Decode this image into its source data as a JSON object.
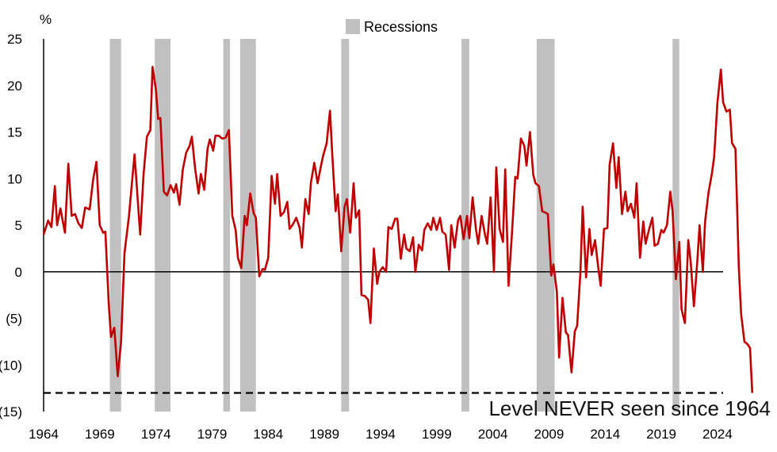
{
  "chart_data": {
    "type": "line",
    "title": "",
    "xlabel": "",
    "ylabel": "%",
    "xlim": [
      1964,
      2024.5
    ],
    "ylim": [
      -15,
      25
    ],
    "x_ticks": [
      1964,
      1969,
      1974,
      1979,
      1984,
      1989,
      1994,
      1999,
      2004,
      2009,
      2014,
      2019,
      2024
    ],
    "y_ticks": [
      {
        "value": 25,
        "label": "25"
      },
      {
        "value": 20,
        "label": "20"
      },
      {
        "value": 15,
        "label": "15"
      },
      {
        "value": 10,
        "label": "10"
      },
      {
        "value": 5,
        "label": "5"
      },
      {
        "value": 0,
        "label": "0"
      },
      {
        "value": -5,
        "label": "(5)"
      },
      {
        "value": -10,
        "label": "(10)"
      },
      {
        "value": -15,
        "label": "(15)"
      }
    ],
    "legend": {
      "placement": "top-center",
      "entries": [
        {
          "label": "Recessions",
          "color": "#c0c0c0"
        }
      ]
    },
    "recessions": [
      [
        1969.9,
        1970.9
      ],
      [
        1973.9,
        1975.3
      ],
      [
        1980.0,
        1980.6
      ],
      [
        1981.5,
        1982.9
      ],
      [
        1990.5,
        1991.2
      ],
      [
        2001.2,
        2001.9
      ],
      [
        2007.9,
        2009.5
      ],
      [
        2020.0,
        2020.6
      ]
    ],
    "series": [
      {
        "color": "#c00000",
        "points": [
          [
            1964.0,
            4
          ],
          [
            1964.4,
            5.5
          ],
          [
            1964.7,
            4.8
          ],
          [
            1965.0,
            9.2
          ],
          [
            1965.2,
            5
          ],
          [
            1965.5,
            6.8
          ],
          [
            1965.9,
            4.2
          ],
          [
            1966.2,
            11.6
          ],
          [
            1966.5,
            6
          ],
          [
            1966.8,
            6.2
          ],
          [
            1967.1,
            5.2
          ],
          [
            1967.4,
            4.7
          ],
          [
            1967.7,
            6.9
          ],
          [
            1968.1,
            6.7
          ],
          [
            1968.4,
            9.8
          ],
          [
            1968.7,
            11.8
          ],
          [
            1969.0,
            5
          ],
          [
            1969.3,
            4.2
          ],
          [
            1969.5,
            4.3
          ],
          [
            1969.8,
            -3.5
          ],
          [
            1970.0,
            -7
          ],
          [
            1970.3,
            -6
          ],
          [
            1970.6,
            -11.2
          ],
          [
            1970.9,
            -7.5
          ],
          [
            1971.2,
            2
          ],
          [
            1971.6,
            6
          ],
          [
            1971.9,
            10
          ],
          [
            1972.1,
            12.6
          ],
          [
            1972.6,
            4
          ],
          [
            1972.9,
            10.5
          ],
          [
            1973.2,
            14.5
          ],
          [
            1973.5,
            15.2
          ],
          [
            1973.7,
            22
          ],
          [
            1974.0,
            19.5
          ],
          [
            1974.2,
            16.4
          ],
          [
            1974.4,
            16.5
          ],
          [
            1974.7,
            8.6
          ],
          [
            1975.0,
            8.2
          ],
          [
            1975.3,
            9.3
          ],
          [
            1975.6,
            8.5
          ],
          [
            1975.8,
            9.4
          ],
          [
            1976.1,
            7.2
          ],
          [
            1976.4,
            11
          ],
          [
            1976.7,
            12.8
          ],
          [
            1977.0,
            13.5
          ],
          [
            1977.2,
            14.5
          ],
          [
            1977.5,
            11
          ],
          [
            1977.8,
            8.4
          ],
          [
            1978.0,
            10.5
          ],
          [
            1978.3,
            8.8
          ],
          [
            1978.6,
            13.2
          ],
          [
            1978.8,
            14.2
          ],
          [
            1979.1,
            13
          ],
          [
            1979.3,
            14.6
          ],
          [
            1979.6,
            14.6
          ],
          [
            1979.9,
            14.3
          ],
          [
            1980.2,
            14.4
          ],
          [
            1980.5,
            15.2
          ],
          [
            1980.8,
            6
          ],
          [
            1981.1,
            4.5
          ],
          [
            1981.3,
            1.5
          ],
          [
            1981.6,
            0.4
          ],
          [
            1981.9,
            6
          ],
          [
            1982.1,
            5
          ],
          [
            1982.4,
            8.4
          ],
          [
            1982.7,
            6.3
          ],
          [
            1982.9,
            5.8
          ],
          [
            1983.2,
            -0.5
          ],
          [
            1983.5,
            0.3
          ],
          [
            1983.7,
            0.2
          ],
          [
            1984.0,
            1.5
          ],
          [
            1984.3,
            10.3
          ],
          [
            1984.6,
            7.3
          ],
          [
            1984.8,
            10.5
          ],
          [
            1985.1,
            6
          ],
          [
            1985.4,
            6.4
          ],
          [
            1985.7,
            7.5
          ],
          [
            1985.9,
            4.6
          ],
          [
            1986.2,
            5.1
          ],
          [
            1986.5,
            5.8
          ],
          [
            1986.8,
            4.7
          ],
          [
            1987.0,
            2.6
          ],
          [
            1987.3,
            7.8
          ],
          [
            1987.6,
            6.2
          ],
          [
            1987.8,
            9.5
          ],
          [
            1988.1,
            11.7
          ],
          [
            1988.4,
            9.5
          ],
          [
            1988.7,
            11.4
          ],
          [
            1988.9,
            12.5
          ],
          [
            1989.2,
            13.8
          ],
          [
            1989.5,
            17.3
          ],
          [
            1989.7,
            12.7
          ],
          [
            1990.0,
            6.5
          ],
          [
            1990.2,
            8.3
          ],
          [
            1990.5,
            2.2
          ],
          [
            1990.8,
            7
          ],
          [
            1991.0,
            7.8
          ],
          [
            1991.3,
            4.2
          ],
          [
            1991.6,
            9.5
          ],
          [
            1991.8,
            5.8
          ],
          [
            1992.1,
            6.6
          ],
          [
            1992.3,
            -2.5
          ],
          [
            1992.6,
            -2.6
          ],
          [
            1992.9,
            -3
          ],
          [
            1993.1,
            -5.5
          ],
          [
            1993.4,
            2.5
          ],
          [
            1993.7,
            -1.3
          ],
          [
            1993.9,
            0
          ],
          [
            1994.2,
            0.5
          ],
          [
            1994.5,
            0
          ],
          [
            1994.7,
            4.8
          ],
          [
            1995.0,
            4.6
          ],
          [
            1995.3,
            5.7
          ],
          [
            1995.5,
            5.7
          ],
          [
            1995.8,
            1.4
          ],
          [
            1996.1,
            4
          ],
          [
            1996.3,
            2.5
          ],
          [
            1996.6,
            2.2
          ],
          [
            1996.9,
            3.7
          ],
          [
            1997.1,
            0
          ],
          [
            1997.4,
            2.9
          ],
          [
            1997.7,
            2.3
          ],
          [
            1997.9,
            4.5
          ],
          [
            1998.2,
            5.2
          ],
          [
            1998.5,
            4.5
          ],
          [
            1998.7,
            5.8
          ],
          [
            1999.0,
            4.5
          ],
          [
            1999.3,
            5.8
          ],
          [
            1999.5,
            4.3
          ],
          [
            1999.8,
            4
          ],
          [
            2000.1,
            0.2
          ],
          [
            2000.3,
            5
          ],
          [
            2000.6,
            2.6
          ],
          [
            2000.9,
            5.5
          ],
          [
            2001.1,
            6
          ],
          [
            2001.4,
            3.5
          ],
          [
            2001.7,
            6
          ],
          [
            2001.9,
            3.6
          ],
          [
            2002.2,
            8
          ],
          [
            2002.5,
            4.5
          ],
          [
            2002.7,
            3
          ],
          [
            2003.0,
            6
          ],
          [
            2003.3,
            4
          ],
          [
            2003.5,
            3
          ],
          [
            2003.8,
            8
          ],
          [
            2004.1,
            0
          ],
          [
            2004.3,
            11.2
          ],
          [
            2004.6,
            4.6
          ],
          [
            2004.9,
            3.2
          ],
          [
            2005.1,
            11
          ],
          [
            2005.4,
            -1.5
          ],
          [
            2005.7,
            4.1
          ],
          [
            2006.0,
            10.2
          ],
          [
            2006.2,
            10
          ],
          [
            2006.5,
            14.3
          ],
          [
            2006.8,
            13.5
          ],
          [
            2007.0,
            11.4
          ],
          [
            2007.3,
            15
          ],
          [
            2007.6,
            10.4
          ],
          [
            2007.8,
            9.5
          ],
          [
            2008.1,
            9.2
          ],
          [
            2008.4,
            6.5
          ],
          [
            2008.6,
            6.4
          ],
          [
            2008.9,
            6.2
          ],
          [
            2009.2,
            -0.4
          ],
          [
            2009.4,
            0.8
          ],
          [
            2009.7,
            -2.2
          ],
          [
            2009.9,
            -9.2
          ],
          [
            2010.2,
            -2.8
          ],
          [
            2010.5,
            -6.5
          ],
          [
            2010.7,
            -6.8
          ],
          [
            2011.0,
            -10.8
          ],
          [
            2011.3,
            -6.4
          ],
          [
            2011.5,
            -5.8
          ],
          [
            2011.8,
            0
          ],
          [
            2012.0,
            7
          ],
          [
            2012.3,
            -0.6
          ],
          [
            2012.6,
            4.6
          ],
          [
            2012.8,
            1.8
          ],
          [
            2013.1,
            3.4
          ],
          [
            2013.4,
            0.3
          ],
          [
            2013.6,
            -1.5
          ],
          [
            2013.9,
            4.6
          ],
          [
            2014.2,
            4.7
          ],
          [
            2014.4,
            11.5
          ],
          [
            2014.7,
            13.8
          ],
          [
            2015.0,
            9
          ],
          [
            2015.2,
            12.3
          ],
          [
            2015.5,
            6.2
          ],
          [
            2015.8,
            8.6
          ],
          [
            2016.0,
            6.5
          ],
          [
            2016.3,
            7.3
          ],
          [
            2016.6,
            5.8
          ],
          [
            2016.8,
            9.5
          ],
          [
            2017.1,
            1.5
          ],
          [
            2017.4,
            5.4
          ],
          [
            2017.6,
            3
          ],
          [
            2017.9,
            4.5
          ],
          [
            2018.2,
            5.8
          ],
          [
            2018.4,
            2.8
          ],
          [
            2018.7,
            3
          ],
          [
            2019.0,
            4.5
          ],
          [
            2019.2,
            4.2
          ],
          [
            2019.5,
            5
          ],
          [
            2019.8,
            8.6
          ],
          [
            2020.0,
            6.5
          ],
          [
            2020.3,
            -0.8
          ],
          [
            2020.6,
            3.2
          ],
          [
            2020.8,
            -4
          ],
          [
            2021.1,
            -5.5
          ],
          [
            2021.4,
            3.4
          ],
          [
            2021.6,
            1.3
          ],
          [
            2021.9,
            -3.7
          ],
          [
            2022.2,
            1
          ],
          [
            2022.4,
            5
          ],
          [
            2022.7,
            0
          ],
          [
            2022.9,
            5.4
          ],
          [
            2023.2,
            8.5
          ],
          [
            2023.5,
            10.5
          ],
          [
            2023.7,
            12.3
          ],
          [
            2024.0,
            18.2
          ],
          [
            2024.3,
            21.7
          ],
          [
            2024.5,
            18.2
          ],
          [
            2024.8,
            17.2
          ],
          [
            2025.1,
            17.4
          ],
          [
            2025.3,
            13.8
          ],
          [
            2025.6,
            13.2
          ],
          [
            2025.9,
            0.6
          ],
          [
            2026.1,
            -4.5
          ],
          [
            2026.4,
            -7.5
          ],
          [
            2026.7,
            -7.8
          ],
          [
            2026.9,
            -8.2
          ],
          [
            2027.1,
            -13
          ]
        ]
      }
    ],
    "reference_line": {
      "value": -13,
      "style": "dashed",
      "label": "Level NEVER seen since 1964"
    }
  }
}
